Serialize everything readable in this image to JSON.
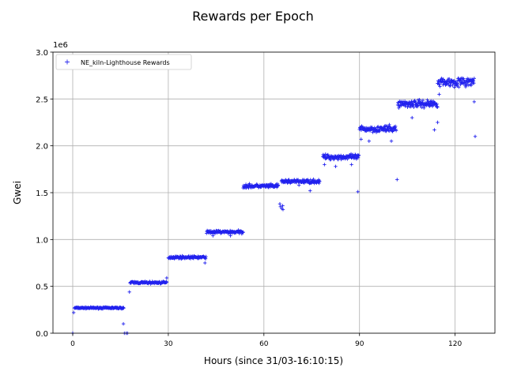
{
  "chart_data": {
    "type": "scatter",
    "title": "Rewards per Epoch",
    "xlabel": "Hours (since 31/03-16:10:15)",
    "ylabel": "Gwei",
    "y_offset_label": "1e6",
    "xlim": [
      -6.2,
      132.5
    ],
    "ylim": [
      0,
      3.0
    ],
    "x_ticks": [
      0,
      30,
      60,
      90,
      120
    ],
    "y_ticks": [
      "0.0",
      "0.5",
      "1.0",
      "1.5",
      "2.0",
      "2.5",
      "3.0"
    ],
    "grid": true,
    "legend_position": "top-left",
    "marker": "+",
    "color": "#2222ee",
    "series": [
      {
        "name": "NE_kiln-Lighthouse Rewards",
        "segments": [
          {
            "x_start": 0.5,
            "x_end": 16.0,
            "y_center": 0.27,
            "y_spread": 0.012
          },
          {
            "x_start": 18.0,
            "x_end": 29.5,
            "y_center": 0.54,
            "y_spread": 0.018
          },
          {
            "x_start": 30.0,
            "x_end": 41.8,
            "y_center": 0.81,
            "y_spread": 0.02
          },
          {
            "x_start": 42.0,
            "x_end": 53.5,
            "y_center": 1.08,
            "y_spread": 0.025
          },
          {
            "x_start": 53.5,
            "x_end": 64.5,
            "y_center": 1.57,
            "y_spread": 0.03
          },
          {
            "x_start": 65.5,
            "x_end": 77.5,
            "y_center": 1.62,
            "y_spread": 0.03
          },
          {
            "x_start": 78.5,
            "x_end": 89.8,
            "y_center": 1.88,
            "y_spread": 0.04
          },
          {
            "x_start": 90.0,
            "x_end": 101.5,
            "y_center": 2.18,
            "y_spread": 0.05
          },
          {
            "x_start": 102.0,
            "x_end": 114.5,
            "y_center": 2.45,
            "y_spread": 0.06
          },
          {
            "x_start": 114.5,
            "x_end": 126.0,
            "y_center": 2.68,
            "y_spread": 0.07
          }
        ],
        "outliers": [
          [
            0.0,
            0.0
          ],
          [
            0.3,
            0.22
          ],
          [
            15.9,
            0.1
          ],
          [
            16.2,
            0.0
          ],
          [
            16.8,
            0.0
          ],
          [
            17.2,
            0.0
          ],
          [
            17.8,
            0.44
          ],
          [
            29.5,
            0.59
          ],
          [
            41.5,
            0.75
          ],
          [
            44.0,
            1.04
          ],
          [
            49.5,
            1.04
          ],
          [
            65.0,
            1.38
          ],
          [
            65.2,
            1.35
          ],
          [
            65.6,
            1.33
          ],
          [
            65.9,
            1.36
          ],
          [
            66.0,
            1.32
          ],
          [
            71.0,
            1.58
          ],
          [
            74.5,
            1.52
          ],
          [
            79.0,
            1.8
          ],
          [
            82.5,
            1.78
          ],
          [
            87.5,
            1.8
          ],
          [
            89.5,
            1.51
          ],
          [
            90.5,
            2.07
          ],
          [
            93.0,
            2.05
          ],
          [
            100.0,
            2.05
          ],
          [
            101.8,
            1.64
          ],
          [
            106.5,
            2.3
          ],
          [
            113.5,
            2.17
          ],
          [
            114.5,
            2.25
          ],
          [
            115.0,
            2.55
          ],
          [
            126.0,
            2.47
          ],
          [
            126.3,
            2.1
          ]
        ]
      }
    ]
  }
}
